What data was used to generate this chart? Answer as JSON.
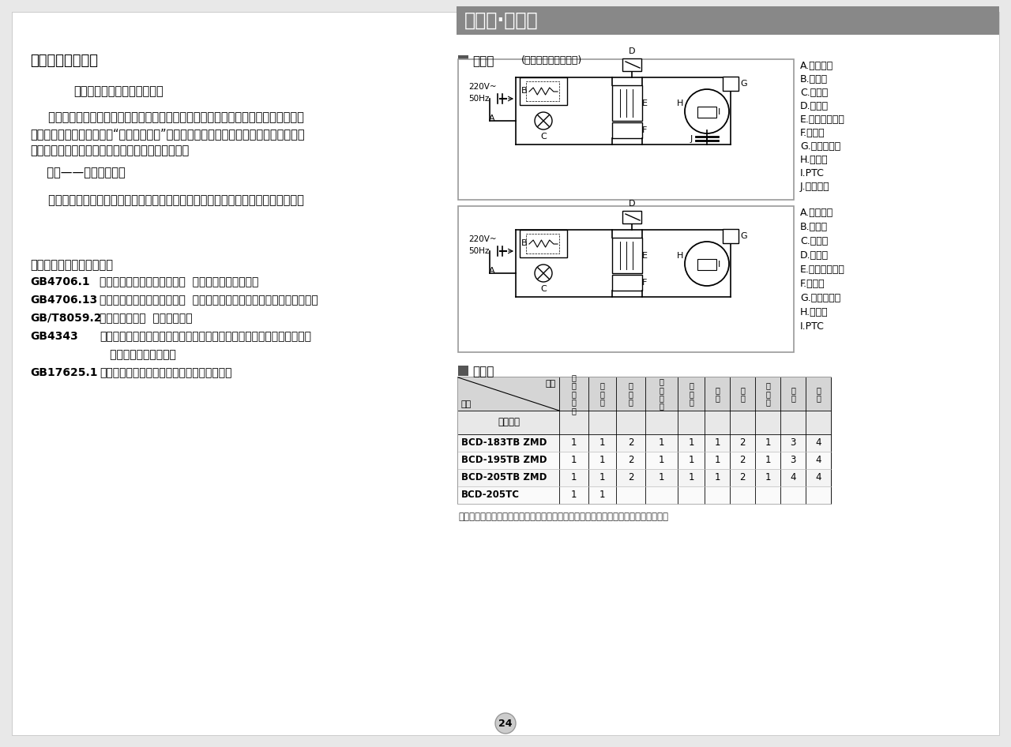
{
  "bg_color": "#e8e8e8",
  "panel_bg": "#ffffff",
  "left": {
    "greeting": "尊敬的海尔用户：",
    "p1": "感谢您选择、使用海尔产品。",
    "p2a": "     海尔产品质量优，性能佳。为了方便您使用，请仔细阅读说明书，并按照说明书的步",
    "p2b": "骤操作。自始至终，海尔的“国际星级服务”将伴随着您，使用时无论有什么问题，请按照",
    "p2c": "保修证的电话、地址联系，我们时刻恭候为您服务。",
    "p3": "  海尔——真诚到永远！",
    "p4": "     由于产品的改进，您所购买的海尔冰箱可能与说明书中介绍不完全一致，谨此致歉。",
    "std_title": "该系列冰箱执行国家标准：",
    "standards": [
      [
        "GB4706.1",
        "《家用和类似用途电器的安全  第一部分：通用要求》"
      ],
      [
        "GB4706.13",
        "《家用和类似用途电器的安全  制冷器具、冰淇淋机和制冰机的特殊要求》"
      ],
      [
        "GB/T8059.2",
        "《家用制冷器具  冷藏冷冻箱》"
      ],
      [
        "GB4343",
        "《家用和类似用途电动、电热器具，电动工具以及类似电器无线电干扰特"
      ],
      [
        "",
        "   性测量方法和允许值》"
      ],
      [
        "GB17625.1",
        "《低压电气及电子设备发出的谐波电流限值》"
      ]
    ]
  },
  "right": {
    "header_text": "线路图·装箱单",
    "circuit_title": "线路图",
    "circuit_subtitle": "(具体型号以铭牌为准)",
    "legend1": [
      "A.电源插头",
      "B.灯开关",
      "C.照明灯",
      "D.温控器",
      "E.磁敏温度开关",
      "F.加热丝",
      "G.过载保护器",
      "H.压缩机",
      "I.PTC",
      "J.运行电容"
    ],
    "legend2": [
      "A.电源插头",
      "B.灯开关",
      "C.照明灯",
      "D.温控器",
      "E.磁敏温度开关",
      "F.加热丝",
      "G.过载保护器",
      "H.压缩机",
      "I.PTC"
    ],
    "table_title": "装箱单",
    "col_headers": [
      "使\n用\n说\n明\n书",
      "保\n修\n证",
      "搁\n物\n架",
      "保\n湿\n盖\n板",
      "保\n湿\n盒",
      "冰\n盒",
      "蛋\n盒",
      "透\n孔\n插",
      "拒\n屉",
      "瓶\n座"
    ],
    "table_rows": [
      [
        "BCD-183TB ZMD",
        "1",
        "1",
        "2",
        "1",
        "1",
        "1",
        "2",
        "1",
        "3",
        "4"
      ],
      [
        "BCD-195TB ZMD",
        "1",
        "1",
        "2",
        "1",
        "1",
        "1",
        "2",
        "1",
        "3",
        "4"
      ],
      [
        "BCD-205TB ZMD",
        "1",
        "1",
        "2",
        "1",
        "1",
        "1",
        "2",
        "1",
        "4",
        "4"
      ],
      [
        "BCD-205TC",
        "1",
        "1",
        "",
        "",
        "",
        "",
        "",
        "",
        "",
        ""
      ]
    ],
    "note": "注：本产品因不断研究改进，保留冰箱各部件的变更权利，恕不另行通知，敬请谅解。",
    "page_num": "24"
  }
}
